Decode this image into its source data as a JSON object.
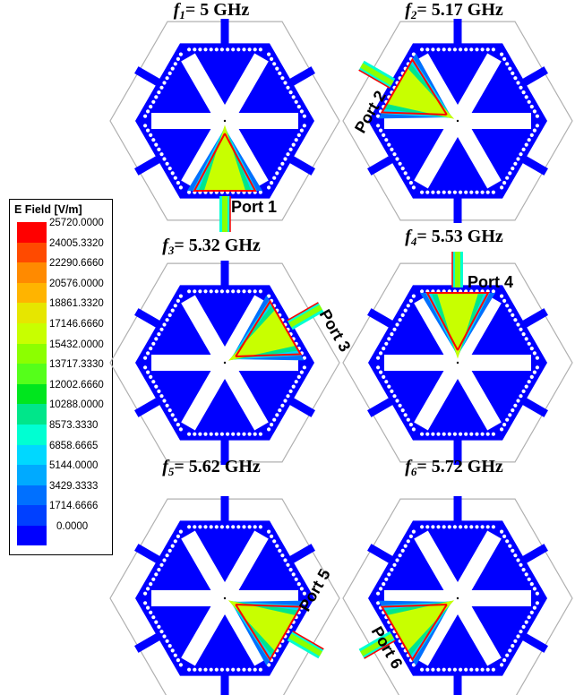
{
  "legend": {
    "title": "E Field [V/m]",
    "values": [
      "25720.0000",
      "24005.3320",
      "22290.6660",
      "20576.0000",
      "18861.3320",
      "17146.6660",
      "15432.0000",
      "13717.3330",
      "12002.6660",
      "10288.0000",
      "8573.3330",
      "6858.6665",
      "5144.0000",
      "3429.3333",
      "1714.6666",
      "0.0000"
    ],
    "colors": [
      "#ff0000",
      "#ff4a00",
      "#ff8a00",
      "#ffb400",
      "#e6e600",
      "#c8ff00",
      "#8cff00",
      "#55ff1a",
      "#00e61e",
      "#00e68a",
      "#00ffd2",
      "#00d8ff",
      "#00aaff",
      "#0070ff",
      "#0040ff",
      "#0000ff"
    ]
  },
  "panels": [
    {
      "var": "f",
      "sub": "1",
      "freq": "= 5 GHz",
      "port": "Port 1"
    },
    {
      "var": "f",
      "sub": "2",
      "freq": "= 5.17 GHz",
      "port": "Port 2"
    },
    {
      "var": "f",
      "sub": "3",
      "freq": "= 5.32 GHz",
      "port": "Port 3"
    },
    {
      "var": "f",
      "sub": "4",
      "freq": "= 5.53 GHz",
      "port": "Port 4"
    },
    {
      "var": "f",
      "sub": "5",
      "freq": "= 5.62 GHz",
      "port": "Port 5"
    },
    {
      "var": "f",
      "sub": "6",
      "freq": "= 5.72 GHz",
      "port": "Port 6"
    }
  ],
  "colors": {
    "substrate": "#0000ff",
    "slot": "#ffffff",
    "outline": "#b0b0b0"
  }
}
